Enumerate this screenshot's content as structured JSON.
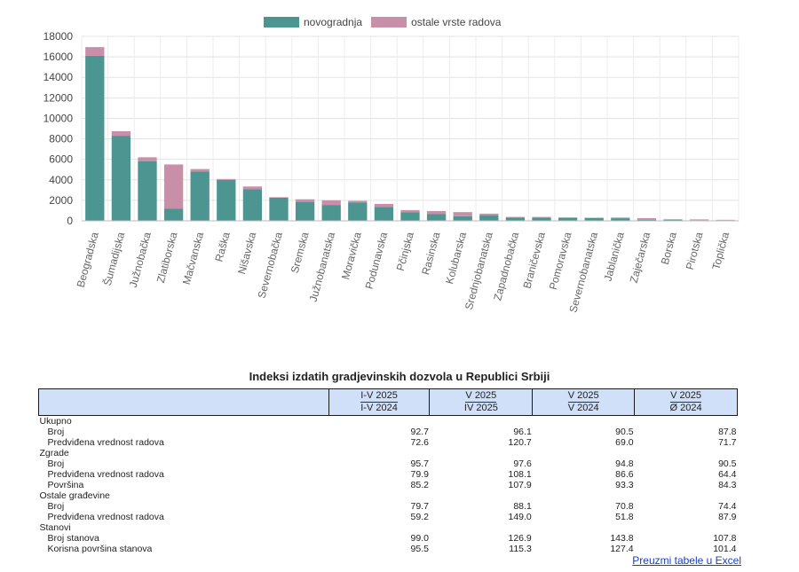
{
  "chart_data": {
    "type": "bar",
    "stacked": true,
    "categories": [
      "Beogradska",
      "Šumadijska",
      "Južnobačka",
      "Zlatiborska",
      "Mačvanska",
      "Raška",
      "Nišavska",
      "Severnobačka",
      "Sremska",
      "Južnobanatska",
      "Moravička",
      "Podunavska",
      "Pčinjska",
      "Rasinska",
      "Kolubarska",
      "Srednjobanatska",
      "Zapadnobačka",
      "Braničevska",
      "Pomoravska",
      "Severnobanatska",
      "Jablanička",
      "Zaječarska",
      "Borska",
      "Pirotska",
      "Toplička"
    ],
    "series": [
      {
        "name": "novogradnja",
        "color": "#4c9591",
        "values": [
          16100,
          8300,
          5800,
          1200,
          4800,
          4000,
          3100,
          2250,
          1850,
          1550,
          1800,
          1350,
          850,
          650,
          450,
          550,
          300,
          320,
          280,
          270,
          250,
          90,
          100,
          50,
          60
        ]
      },
      {
        "name": "ostale vrste radova",
        "color": "#c98fa8",
        "values": [
          850,
          450,
          400,
          4300,
          250,
          80,
          250,
          50,
          250,
          450,
          150,
          300,
          200,
          300,
          400,
          150,
          80,
          60,
          60,
          40,
          70,
          170,
          60,
          90,
          40
        ]
      }
    ],
    "ylim": [
      0,
      18000
    ],
    "yticks": [
      "0",
      "2000",
      "4000",
      "6000",
      "8000",
      "10000",
      "12000",
      "14000",
      "16000",
      "18000"
    ],
    "grid": true,
    "legend_position": "top-center"
  },
  "table": {
    "title": "Indeksi izdatih gradjevinskih dozvola u Republici Srbiji",
    "headers": [
      {
        "top": "I-V 2025",
        "bottom": "I-V 2024"
      },
      {
        "top": "V 2025",
        "bottom": "IV 2025"
      },
      {
        "top": "V 2025",
        "bottom": "V 2024"
      },
      {
        "top": "V 2025",
        "bottom": "Ø 2024"
      }
    ],
    "rows": [
      {
        "label": "Ukupno",
        "group": true
      },
      {
        "label": "Broj",
        "values": [
          "92.7",
          "96.1",
          "90.5",
          "87.8"
        ]
      },
      {
        "label": "Predviđena vrednost radova",
        "values": [
          "72.6",
          "120.7",
          "69.0",
          "71.7"
        ]
      },
      {
        "label": "Zgrade",
        "group": true
      },
      {
        "label": "Broj",
        "values": [
          "95.7",
          "97.6",
          "94.8",
          "90.5"
        ]
      },
      {
        "label": "Predviđena vrednost radova",
        "values": [
          "79.9",
          "108.1",
          "86.6",
          "64.4"
        ]
      },
      {
        "label": "Površina",
        "values": [
          "85.2",
          "107.9",
          "93.3",
          "84.3"
        ]
      },
      {
        "label": "Ostale građevine",
        "group": true
      },
      {
        "label": "Broj",
        "values": [
          "79.7",
          "88.1",
          "70.8",
          "74.4"
        ]
      },
      {
        "label": "Predviđena vrednost radova",
        "values": [
          "59.2",
          "149.0",
          "51.8",
          "87.9"
        ]
      },
      {
        "label": "Stanovi",
        "group": true
      },
      {
        "label": "Broj stanova",
        "values": [
          "99.0",
          "126.9",
          "143.8",
          "107.8"
        ]
      },
      {
        "label": "Korisna površina stanova",
        "values": [
          "95.5",
          "115.3",
          "127.4",
          "101.4"
        ]
      }
    ]
  },
  "excel_link": "Preuzmi tabele u Excel"
}
